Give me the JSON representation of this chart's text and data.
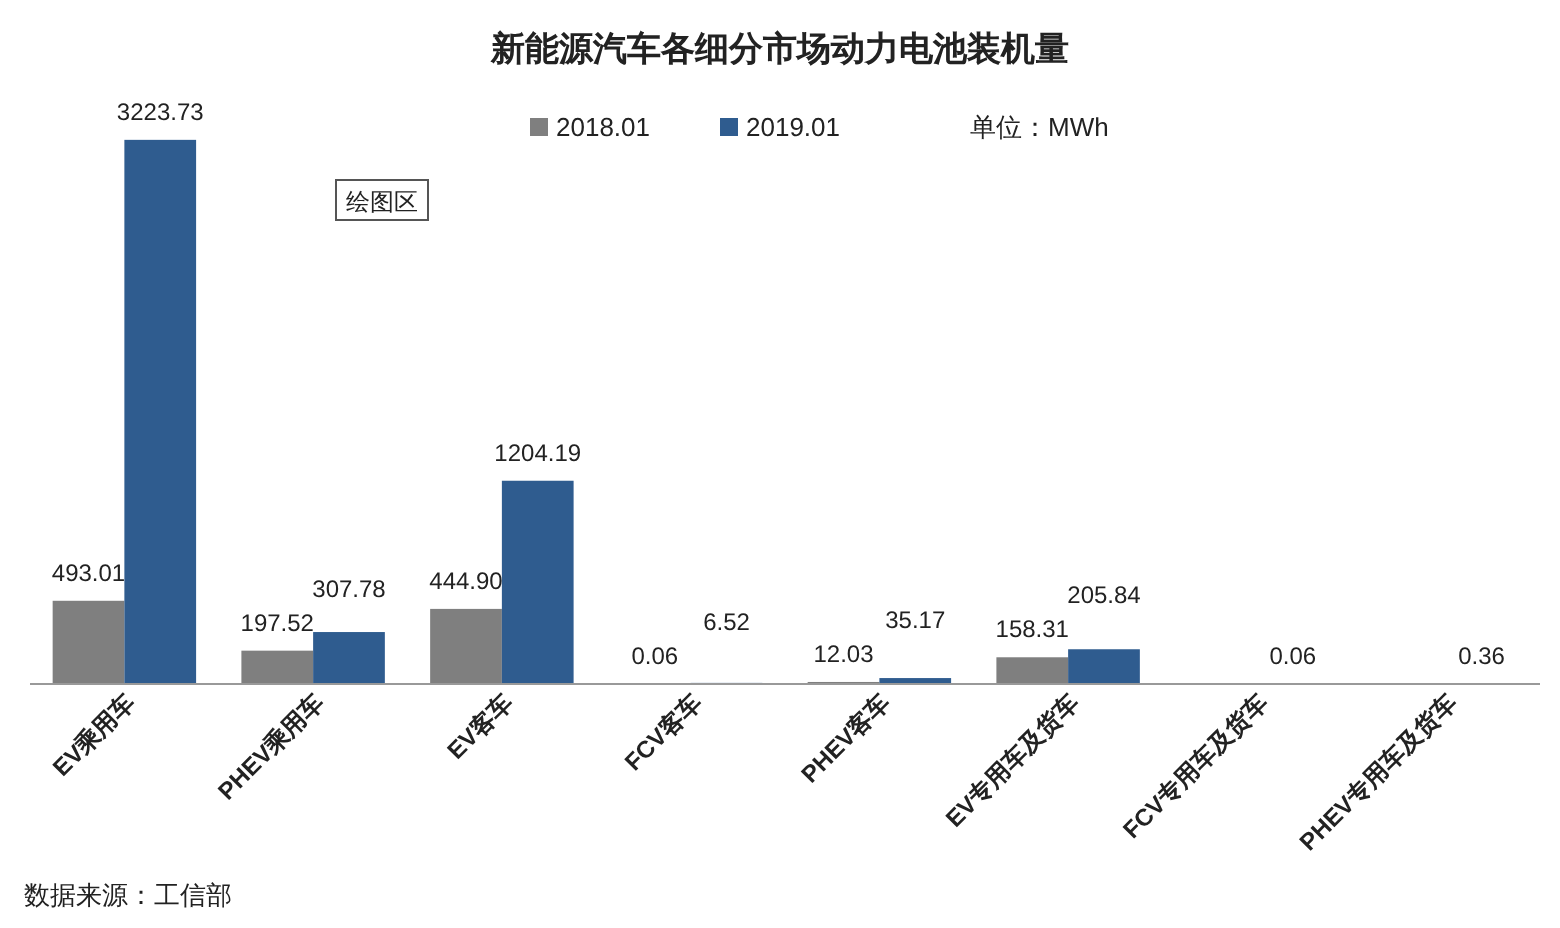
{
  "chart_data": {
    "type": "bar",
    "title": "新能源汽车各细分市场动力电池装机量",
    "categories": [
      "EV乘用车",
      "PHEV乘用车",
      "EV客车",
      "FCV客车",
      "PHEV客车",
      "EV专用车及货车",
      "FCV专用车及货车",
      "PHEV专用车及货车"
    ],
    "series": [
      {
        "name": "2018.01",
        "color": "#7f7f7f",
        "values": [
          493.01,
          197.52,
          444.9,
          0.06,
          12.03,
          158.31,
          null,
          null
        ],
        "value_labels": [
          "493.01",
          "197.52",
          "444.90",
          "0.06",
          "12.03",
          "158.31",
          null,
          null
        ]
      },
      {
        "name": "2019.01",
        "color": "#2f5c8f",
        "values": [
          3223.73,
          307.78,
          1204.19,
          6.52,
          35.17,
          205.84,
          0.06,
          0.36
        ],
        "value_labels": [
          "3223.73",
          "307.78",
          "1204.19",
          "6.52",
          "35.17",
          "205.84",
          "0.06",
          "0.36"
        ]
      }
    ],
    "legend": "top",
    "grid": false,
    "annotations": [
      "单位：MWh",
      "绘图区",
      "数据来源：工信部"
    ]
  }
}
